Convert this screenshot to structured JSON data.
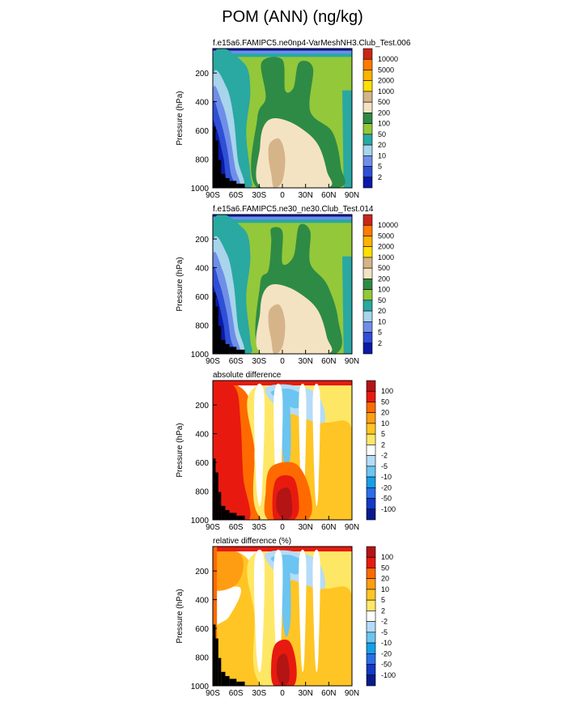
{
  "title": "POM (ANN) (ng/kg)",
  "colors": {
    "seq": [
      "#0a1aa8",
      "#2f4fd6",
      "#6f8ee8",
      "#a8d4ec",
      "#2aa8a2",
      "#93c83a",
      "#2e8b45",
      "#f4e3c2",
      "#d6b48a",
      "#ffe000",
      "#ffb200",
      "#ff7a00",
      "#c8261a"
    ],
    "diff": [
      "#0a1a8c",
      "#1438c8",
      "#2a6ee8",
      "#14a0e8",
      "#6cc4f0",
      "#b4dcf8",
      "#ffffff",
      "#ffe766",
      "#ffc524",
      "#ff9d12",
      "#ff6a00",
      "#e81a10",
      "#b41414"
    ]
  },
  "chart_data": [
    {
      "type": "heatmap",
      "name": "panel-1",
      "title": "f.e15a6.FAMIPC5.ne0np4-VarMeshNH3.Club_Test.006",
      "ylabel": "Pressure (hPa)",
      "yticks": [
        "200",
        "400",
        "600",
        "800",
        "1000"
      ],
      "xticks": [
        "90S",
        "60S",
        "30S",
        "0",
        "30N",
        "60N",
        "90N"
      ],
      "ylim": [
        1000,
        30
      ],
      "colorbar": [
        "10000",
        "5000",
        "2000",
        "1000",
        "500",
        "200",
        "100",
        "50",
        "20",
        "10",
        "5",
        "2"
      ]
    },
    {
      "type": "heatmap",
      "name": "panel-2",
      "title": "f.e15a6.FAMIPC5.ne30_ne30.Club_Test.014",
      "ylabel": "Pressure (hPa)",
      "yticks": [
        "200",
        "400",
        "600",
        "800",
        "1000"
      ],
      "xticks": [
        "90S",
        "60S",
        "30S",
        "0",
        "30N",
        "60N",
        "90N"
      ],
      "ylim": [
        1000,
        30
      ],
      "colorbar": [
        "10000",
        "5000",
        "2000",
        "1000",
        "500",
        "200",
        "100",
        "50",
        "20",
        "10",
        "5",
        "2"
      ]
    },
    {
      "type": "heatmap",
      "name": "panel-3",
      "title": "absolute difference",
      "ylabel": "Pressure (hPa)",
      "yticks": [
        "200",
        "400",
        "600",
        "800",
        "1000"
      ],
      "xticks": [
        "90S",
        "60S",
        "30S",
        "0",
        "30N",
        "60N",
        "90N"
      ],
      "ylim": [
        1000,
        30
      ],
      "colorbar": [
        "100",
        "50",
        "20",
        "10",
        "5",
        "2",
        "-2",
        "-5",
        "-10",
        "-20",
        "-50",
        "-100"
      ]
    },
    {
      "type": "heatmap",
      "name": "panel-4",
      "title": "relative difference (%)",
      "ylabel": "Pressure (hPa)",
      "yticks": [
        "200",
        "400",
        "600",
        "800",
        "1000"
      ],
      "xticks": [
        "90S",
        "60S",
        "30S",
        "0",
        "30N",
        "60N",
        "90N"
      ],
      "ylim": [
        1000,
        30
      ],
      "colorbar": [
        "100",
        "50",
        "20",
        "10",
        "5",
        "2",
        "-2",
        "-5",
        "-10",
        "-20",
        "-50",
        "-100"
      ]
    }
  ]
}
